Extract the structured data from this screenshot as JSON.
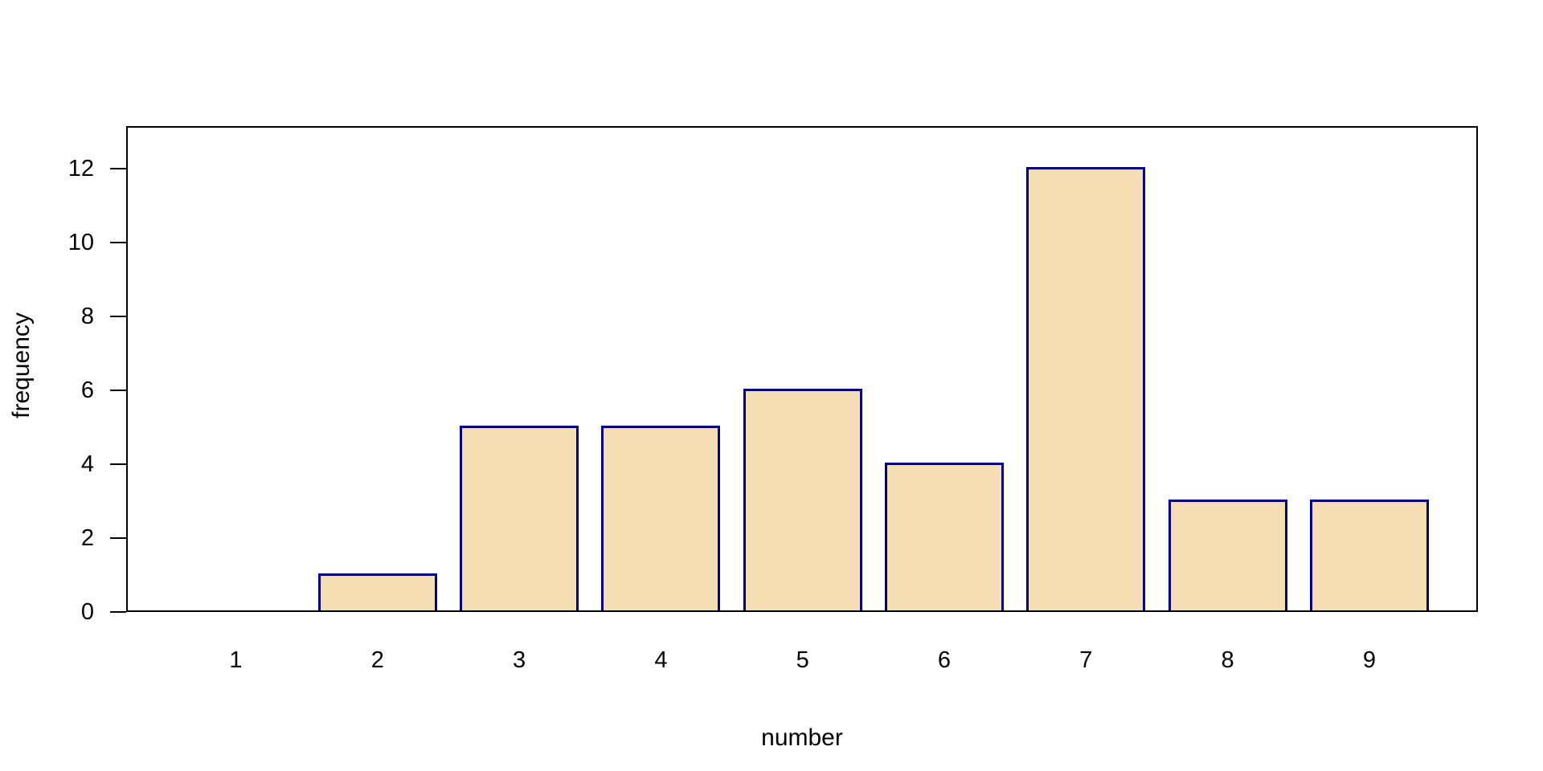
{
  "figure": {
    "background": "#FFFFFF",
    "axis_color": "#000000",
    "text_color": "#000000"
  },
  "chart_data": {
    "type": "bar",
    "title": "",
    "categories": [
      "1",
      "2",
      "3",
      "4",
      "5",
      "6",
      "7",
      "8",
      "9"
    ],
    "values": [
      0,
      1,
      5,
      5,
      6,
      4,
      12,
      3,
      3
    ],
    "xlabel": "number",
    "ylabel": "frequency",
    "yticks": [
      0,
      2,
      4,
      6,
      8,
      10,
      12
    ],
    "ylim": [
      0,
      13.1
    ],
    "grid": false,
    "legend_position": "none",
    "bar_fill": "#F5DEB3",
    "bar_border": "#000080"
  }
}
